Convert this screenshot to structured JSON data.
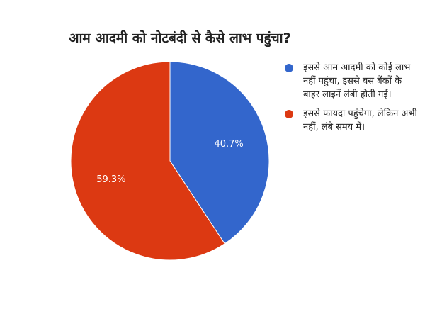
{
  "chart_data": {
    "type": "pie",
    "title": "आम आदमी को नोटबंदी से कैसे लाभ पहुंचा?",
    "slices": [
      {
        "label": "इससे आम आदमी को कोई लाभ नहीं पहुंचा, इससे बस बैंकों के बाहर लाइनें लंबी होती गई।",
        "value": 40.7,
        "display": "40.7%",
        "color": "#3366cc"
      },
      {
        "label": "इससे फायदा पहुंचेगा, लेकिन अभी नहीं, लंबे समय में।",
        "value": 59.3,
        "display": "59.3%",
        "color": "#dc3912"
      }
    ],
    "legend_position": "right",
    "start_angle": "top, clockwise"
  }
}
